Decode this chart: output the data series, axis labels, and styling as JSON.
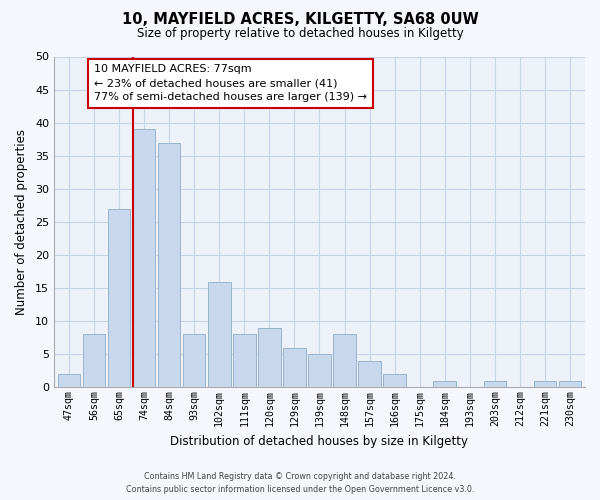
{
  "title": "10, MAYFIELD ACRES, KILGETTY, SA68 0UW",
  "subtitle": "Size of property relative to detached houses in Kilgetty",
  "xlabel": "Distribution of detached houses by size in Kilgetty",
  "ylabel": "Number of detached properties",
  "bar_labels": [
    "47sqm",
    "56sqm",
    "65sqm",
    "74sqm",
    "84sqm",
    "93sqm",
    "102sqm",
    "111sqm",
    "120sqm",
    "129sqm",
    "139sqm",
    "148sqm",
    "157sqm",
    "166sqm",
    "175sqm",
    "184sqm",
    "193sqm",
    "203sqm",
    "212sqm",
    "221sqm",
    "230sqm"
  ],
  "bar_values": [
    2,
    8,
    27,
    39,
    37,
    8,
    16,
    8,
    9,
    6,
    5,
    8,
    4,
    2,
    0,
    1,
    0,
    1,
    0,
    1,
    1
  ],
  "bar_color": "#c8d8ec",
  "bar_edge_color": "#9ab4ce",
  "vline_index": 3,
  "annotation_line1": "10 MAYFIELD ACRES: 77sqm",
  "annotation_line2": "← 23% of detached houses are smaller (41)",
  "annotation_line3": "77% of semi-detached houses are larger (139) →",
  "annotation_box_facecolor": "#ffffff",
  "annotation_box_edgecolor": "#cc0000",
  "vline_color": "#cc0000",
  "ylim": [
    0,
    50
  ],
  "yticks": [
    0,
    5,
    10,
    15,
    20,
    25,
    30,
    35,
    40,
    45,
    50
  ],
  "grid_color": "#c5d5e8",
  "plot_bg_color": "#edf2f9",
  "fig_bg_color": "#f5f7fc",
  "footer_line1": "Contains HM Land Registry data © Crown copyright and database right 2024.",
  "footer_line2": "Contains public sector information licensed under the Open Government Licence v3.0."
}
